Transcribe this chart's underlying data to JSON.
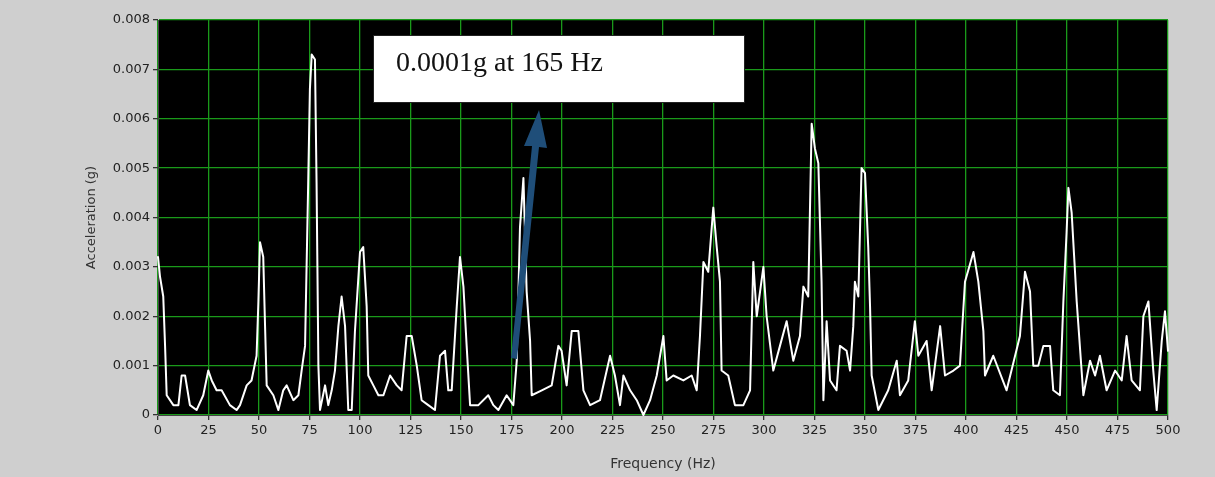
{
  "chart_data": {
    "type": "line",
    "xlabel": "Frequency (Hz)",
    "ylabel": "Acceleration (g)",
    "annotations": [
      "0.0001g at 165 Hz"
    ],
    "grid": true,
    "marker": "none",
    "line_style": "solid",
    "legend": false,
    "xlim": [
      0,
      500
    ],
    "xticks": [
      0,
      25,
      50,
      75,
      100,
      125,
      150,
      175,
      200,
      225,
      250,
      275,
      300,
      325,
      350,
      375,
      400,
      425,
      450,
      475,
      500
    ],
    "ylim": [
      0,
      0.008
    ],
    "yticks": [
      0,
      0.001,
      0.002,
      0.003,
      0.004,
      0.005,
      0.006,
      0.007,
      0.008
    ],
    "series": [
      {
        "color": "#ffffff",
        "x": [
          0,
          1,
          2.6,
          3.5,
          4.3,
          7.6,
          10.1,
          11.7,
          13.4,
          15.8,
          19.1,
          22.4,
          24.9,
          26.6,
          29,
          31.5,
          35.6,
          38.9,
          40.6,
          43.9,
          46.3,
          48.8,
          49.7,
          50.5,
          52.1,
          53,
          53.8,
          57.1,
          59.6,
          62,
          63.7,
          67,
          69.5,
          71.1,
          72.8,
          73.6,
          74.4,
          75.2,
          76.1,
          77.7,
          78.5,
          79.4,
          80.2,
          82.7,
          84.3,
          86,
          87.6,
          89.3,
          90.9,
          92.6,
          94.2,
          95.9,
          97.5,
          100,
          101.6,
          103.3,
          104.1,
          106.6,
          109.1,
          111.6,
          114.9,
          118.2,
          120.6,
          123.1,
          125.6,
          128.1,
          130.5,
          133.8,
          137.1,
          139.6,
          142.1,
          143.7,
          145.4,
          147.9,
          149.5,
          151.2,
          152.8,
          154.5,
          158.6,
          163.5,
          166,
          168.5,
          172.6,
          175.9,
          177.6,
          179.2,
          180.9,
          182.5,
          184.2,
          185,
          190,
          194.9,
          198.2,
          199.8,
          202.3,
          204.8,
          208.1,
          210.6,
          213.9,
          218.8,
          223.8,
          226.2,
          228.7,
          230.4,
          233.7,
          237,
          240.3,
          243.6,
          246.9,
          250.2,
          251.8,
          255.1,
          260.1,
          264.2,
          266.7,
          268.3,
          270,
          272.4,
          274.9,
          276.6,
          278.2,
          279,
          282.3,
          285.6,
          289.8,
          293.1,
          294.7,
          296.4,
          299.7,
          301.3,
          304.6,
          307.9,
          311.2,
          314.5,
          317.8,
          319.5,
          321.9,
          323.6,
          325.2,
          326.9,
          328.5,
          329.4,
          331,
          332.7,
          335.9,
          337.6,
          340.9,
          342.6,
          344.2,
          345,
          346.7,
          348.3,
          350,
          351.6,
          352.5,
          353.3,
          356.6,
          361.5,
          365.7,
          367.3,
          371.4,
          374.7,
          376.4,
          380.5,
          383,
          387.2,
          389.6,
          393.8,
          397,
          399.5,
          403.7,
          406.1,
          408.6,
          409.4,
          413.5,
          420.1,
          426.7,
          429.2,
          431.7,
          433.3,
          435.8,
          438.3,
          441.6,
          443.2,
          446.5,
          448.2,
          449.8,
          450.7,
          452.3,
          454.8,
          458.1,
          461.4,
          463.9,
          466.3,
          469.6,
          473.8,
          477.1,
          479.5,
          482,
          486.1,
          487.8,
          490.3,
          492.7,
          494.4,
          496.9,
          498.5,
          500
        ],
        "values": [
          0.0032,
          0.0028,
          0.0024,
          0.0014,
          0.0004,
          0.0002,
          0.0002,
          0.0008,
          0.0008,
          0.0002,
          0.0001,
          0.0004,
          0.0009,
          0.0007,
          0.0005,
          0.0005,
          0.0002,
          0.0001,
          0.0002,
          0.0006,
          0.0007,
          0.0012,
          0.0023,
          0.0035,
          0.0032,
          0.0018,
          0.0006,
          0.0004,
          0.0001,
          0.0005,
          0.0006,
          0.0003,
          0.0004,
          0.0009,
          0.0014,
          0.0031,
          0.0048,
          0.0066,
          0.0073,
          0.0072,
          0.0047,
          0.001,
          0.0001,
          0.0006,
          0.0002,
          0.0005,
          0.0009,
          0.0018,
          0.0024,
          0.0018,
          0.0001,
          0.0001,
          0.0017,
          0.0033,
          0.0034,
          0.0022,
          0.0008,
          0.0006,
          0.0004,
          0.0004,
          0.0008,
          0.0006,
          0.0005,
          0.0016,
          0.0016,
          0.001,
          0.0003,
          0.0002,
          0.0001,
          0.0012,
          0.0013,
          0.0005,
          0.0005,
          0.0022,
          0.0032,
          0.0026,
          0.0014,
          0.0002,
          0.0002,
          0.0004,
          0.0002,
          0.0001,
          0.0004,
          0.0002,
          0.0011,
          0.0038,
          0.0048,
          0.0025,
          0.0015,
          0.0004,
          0.0005,
          0.0006,
          0.0014,
          0.0013,
          0.0006,
          0.0017,
          0.0017,
          0.0005,
          0.0002,
          0.0003,
          0.0012,
          0.0008,
          0.0002,
          0.0008,
          0.0005,
          0.0003,
          0,
          0.0003,
          0.0008,
          0.0016,
          0.0007,
          0.0008,
          0.0007,
          0.0008,
          0.0005,
          0.0016,
          0.0031,
          0.0029,
          0.0042,
          0.0034,
          0.0027,
          0.0009,
          0.0008,
          0.0002,
          0.0002,
          0.0005,
          0.0031,
          0.002,
          0.003,
          0.002,
          0.0009,
          0.0014,
          0.0019,
          0.0011,
          0.0016,
          0.0026,
          0.0024,
          0.0059,
          0.0054,
          0.0051,
          0.0027,
          0.0003,
          0.0019,
          0.0007,
          0.0005,
          0.0014,
          0.0013,
          0.0009,
          0.0018,
          0.0027,
          0.0024,
          0.005,
          0.0049,
          0.0034,
          0.0022,
          0.0008,
          0.0001,
          0.0005,
          0.0011,
          0.0004,
          0.0007,
          0.0019,
          0.0012,
          0.0015,
          0.0005,
          0.0018,
          0.0008,
          0.0009,
          0.001,
          0.0027,
          0.0033,
          0.0027,
          0.0017,
          0.0008,
          0.0012,
          0.0005,
          0.0016,
          0.0029,
          0.0025,
          0.001,
          0.001,
          0.0014,
          0.0014,
          0.0005,
          0.0004,
          0.0023,
          0.0037,
          0.0046,
          0.0041,
          0.0023,
          0.0004,
          0.0011,
          0.0008,
          0.0012,
          0.0005,
          0.0009,
          0.0007,
          0.0016,
          0.0007,
          0.0005,
          0.002,
          0.0023,
          0.0009,
          0.0001,
          0.0015,
          0.0021,
          0.0013
        ]
      }
    ]
  }
}
